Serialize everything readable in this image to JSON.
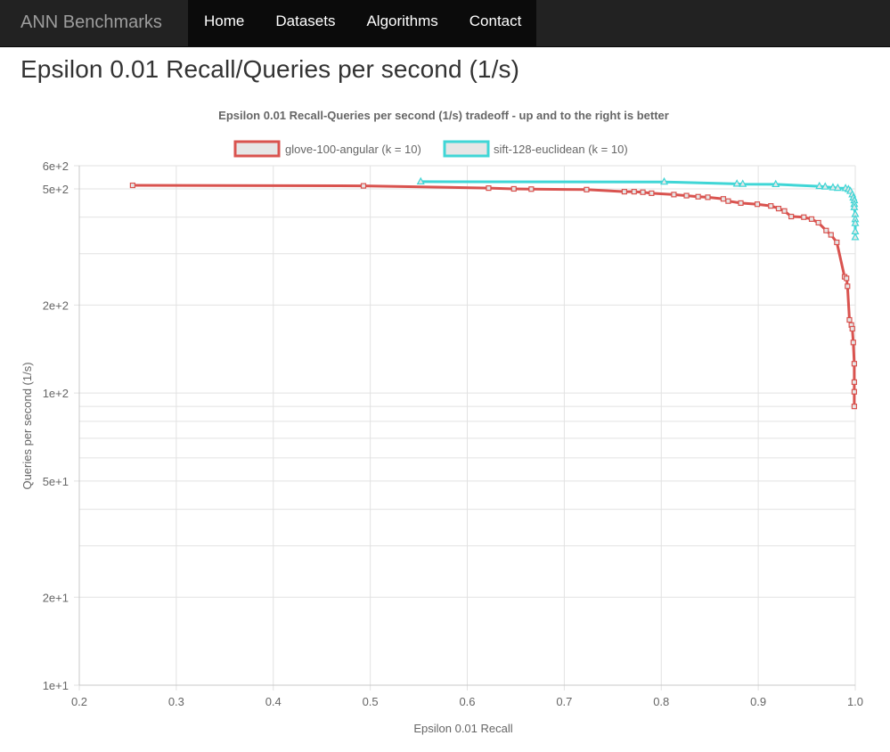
{
  "navbar": {
    "brand": "ANN Benchmarks",
    "items": [
      {
        "label": "Home"
      },
      {
        "label": "Datasets"
      },
      {
        "label": "Algorithms"
      },
      {
        "label": "Contact"
      }
    ]
  },
  "page": {
    "title": "Epsilon 0.01 Recall/Queries per second (1/s)"
  },
  "chart_data": {
    "type": "line",
    "title": "Epsilon 0.01 Recall-Queries per second (1/s) tradeoff - up and to the right is better",
    "xlabel": "Epsilon 0.01 Recall",
    "ylabel": "Queries per second (1/s)",
    "xlim": [
      0.2,
      1.0
    ],
    "ylim": [
      10,
      600
    ],
    "yscale": "log",
    "grid": true,
    "legend_position": "top",
    "x_ticks": [
      {
        "value": 0.2,
        "label": "0.2"
      },
      {
        "value": 0.3,
        "label": "0.3"
      },
      {
        "value": 0.4,
        "label": "0.4"
      },
      {
        "value": 0.5,
        "label": "0.5"
      },
      {
        "value": 0.6,
        "label": "0.6"
      },
      {
        "value": 0.7,
        "label": "0.7"
      },
      {
        "value": 0.8,
        "label": "0.8"
      },
      {
        "value": 0.9,
        "label": "0.9"
      },
      {
        "value": 1.0,
        "label": "1.0"
      }
    ],
    "y_ticks": [
      {
        "value": 10,
        "label": "1e+1"
      },
      {
        "value": 20,
        "label": "2e+1"
      },
      {
        "value": 50,
        "label": "5e+1"
      },
      {
        "value": 100,
        "label": "1e+2"
      },
      {
        "value": 200,
        "label": "2e+2"
      },
      {
        "value": 500,
        "label": "5e+2"
      },
      {
        "value": 600,
        "label": "6e+2"
      }
    ],
    "y_minor_grid": [
      30,
      40,
      60,
      70,
      80,
      90,
      300,
      400
    ],
    "series": [
      {
        "name": "glove-100-angular (k = 10)",
        "color": "#d9534f",
        "fill": "#e6e6e6",
        "marker": "square",
        "points": [
          [
            0.255,
            514
          ],
          [
            0.493,
            512
          ],
          [
            0.622,
            503
          ],
          [
            0.648,
            500
          ],
          [
            0.666,
            499
          ],
          [
            0.723,
            497
          ],
          [
            0.762,
            489
          ],
          [
            0.772,
            489
          ],
          [
            0.781,
            487
          ],
          [
            0.79,
            483
          ],
          [
            0.813,
            478
          ],
          [
            0.826,
            474
          ],
          [
            0.838,
            470
          ],
          [
            0.848,
            468
          ],
          [
            0.864,
            462
          ],
          [
            0.869,
            454
          ],
          [
            0.882,
            447
          ],
          [
            0.899,
            443
          ],
          [
            0.913,
            437
          ],
          [
            0.921,
            428
          ],
          [
            0.927,
            420
          ],
          [
            0.934,
            402
          ],
          [
            0.947,
            400
          ],
          [
            0.955,
            394
          ],
          [
            0.962,
            383
          ],
          [
            0.97,
            360
          ],
          [
            0.975,
            348
          ],
          [
            0.981,
            328
          ],
          [
            0.989,
            250
          ],
          [
            0.991,
            247
          ],
          [
            0.992,
            232
          ],
          [
            0.994,
            178
          ],
          [
            0.996,
            171
          ],
          [
            0.997,
            166
          ],
          [
            0.998,
            149
          ],
          [
            0.999,
            126
          ],
          [
            0.999,
            109
          ],
          [
            0.999,
            101
          ],
          [
            0.999,
            90
          ]
        ]
      },
      {
        "name": "sift-128-euclidean (k = 10)",
        "color": "#40d6d6",
        "fill": "#e6e6e6",
        "marker": "triangle",
        "points": [
          [
            0.552,
            529
          ],
          [
            0.803,
            528
          ],
          [
            0.878,
            520
          ],
          [
            0.884,
            519
          ],
          [
            0.918,
            518
          ],
          [
            0.963,
            510
          ],
          [
            0.969,
            508
          ],
          [
            0.977,
            505
          ],
          [
            0.982,
            503
          ],
          [
            0.99,
            502
          ],
          [
            0.993,
            498
          ],
          [
            0.995,
            491
          ],
          [
            0.997,
            478
          ],
          [
            0.998,
            466
          ],
          [
            0.999,
            456
          ],
          [
            0.999,
            443
          ],
          [
            0.999,
            432
          ],
          [
            1.0,
            409
          ],
          [
            1.0,
            393
          ],
          [
            1.0,
            381
          ],
          [
            1.0,
            357
          ],
          [
            1.0,
            341
          ]
        ]
      }
    ]
  }
}
